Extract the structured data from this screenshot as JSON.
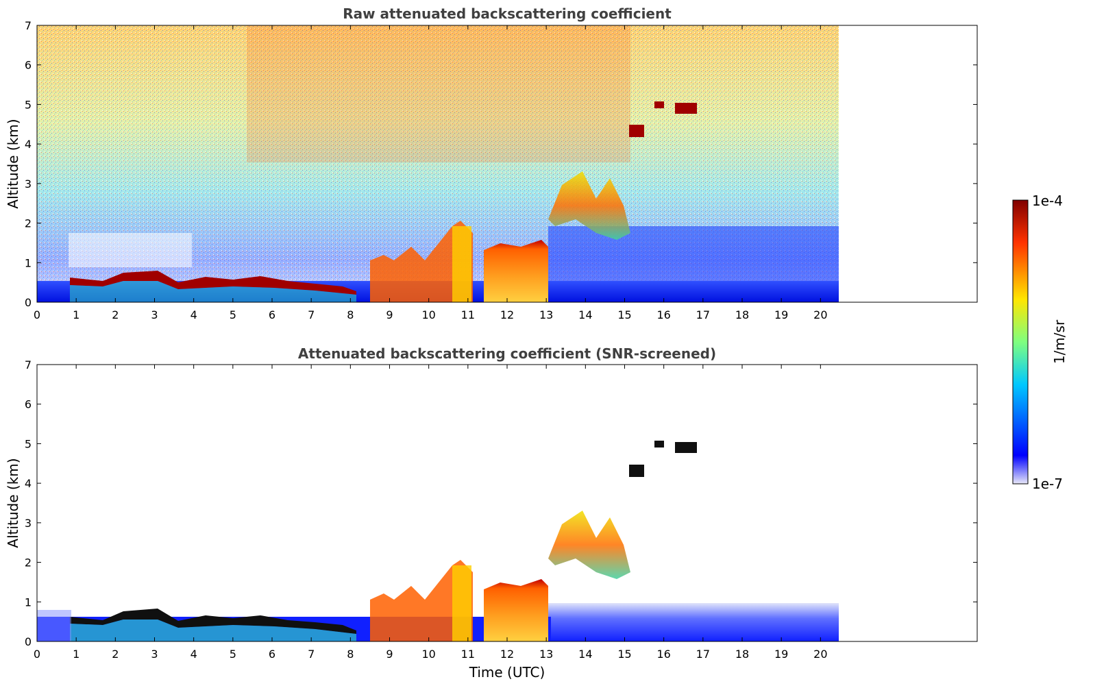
{
  "chart_data": [
    {
      "type": "heatmap",
      "title": "Raw attenuated backscattering coefficient",
      "xlabel": "",
      "ylabel": "Altitude (km)",
      "xlim": [
        0,
        24
      ],
      "ylim": [
        0,
        7
      ],
      "data_x_extent": [
        0,
        20.45
      ],
      "xticks": [
        "0",
        "1",
        "2",
        "3",
        "4",
        "5",
        "6",
        "7",
        "8",
        "9",
        "10",
        "11",
        "12",
        "13",
        "14",
        "15",
        "16",
        "17",
        "18",
        "19",
        "20"
      ],
      "yticks": [
        "0",
        "1",
        "2",
        "3",
        "4",
        "5",
        "6",
        "7"
      ],
      "features": [
        {
          "name": "boundary layer aerosol top",
          "x": [
            0.9,
            8.4
          ],
          "y_km": [
            0.4,
            0.8
          ]
        },
        {
          "name": "low cloud",
          "x": [
            8.8,
            13.1
          ],
          "y_km": [
            0.0,
            2.0
          ]
        },
        {
          "name": "mid-level cloud",
          "x": [
            13.2,
            15.2
          ],
          "y_km": [
            1.5,
            3.5
          ]
        },
        {
          "name": "upper cloud",
          "x": [
            15.1,
            17.0
          ],
          "y_km": [
            4.0,
            5.1
          ]
        },
        {
          "name": "noise-dominated region",
          "x": [
            0,
            20.45
          ],
          "y_km": [
            1.0,
            7.0
          ]
        }
      ]
    },
    {
      "type": "heatmap",
      "title": "Attenuated backscattering coefficient (SNR-screened)",
      "xlabel": "Time (UTC)",
      "ylabel": "Altitude (km)",
      "xlim": [
        0,
        24
      ],
      "ylim": [
        0,
        7
      ],
      "data_x_extent": [
        0,
        20.45
      ],
      "xticks": [
        "0",
        "1",
        "2",
        "3",
        "4",
        "5",
        "6",
        "7",
        "8",
        "9",
        "10",
        "11",
        "12",
        "13",
        "14",
        "15",
        "16",
        "17",
        "18",
        "19",
        "20"
      ],
      "yticks": [
        "0",
        "1",
        "2",
        "3",
        "4",
        "5",
        "6",
        "7"
      ],
      "features": [
        {
          "name": "boundary layer aerosol top",
          "x": [
            0.9,
            8.4
          ],
          "y_km": [
            0.4,
            0.8
          ]
        },
        {
          "name": "low cloud",
          "x": [
            8.8,
            13.1
          ],
          "y_km": [
            0.0,
            2.0
          ]
        },
        {
          "name": "mid-level cloud",
          "x": [
            13.2,
            15.2
          ],
          "y_km": [
            1.5,
            3.5
          ]
        },
        {
          "name": "upper cloud",
          "x": [
            15.1,
            17.0
          ],
          "y_km": [
            4.0,
            5.1
          ]
        }
      ]
    }
  ],
  "colorbar": {
    "label": "1/m/sr",
    "max_label": "1e-4",
    "min_label": "1e-7",
    "scale": "log",
    "colormap": [
      "#e8e8f8",
      "#0000ff",
      "#00c8ff",
      "#7fff7f",
      "#ffe600",
      "#ff3300",
      "#800000"
    ]
  },
  "colors": {
    "noise_high": "#ffd000",
    "noise_low": "#1a3cff",
    "boundary_layer": "#a00000",
    "cloud_core": "#ff8800",
    "background": "#ffffff",
    "title_text": "#404040"
  }
}
